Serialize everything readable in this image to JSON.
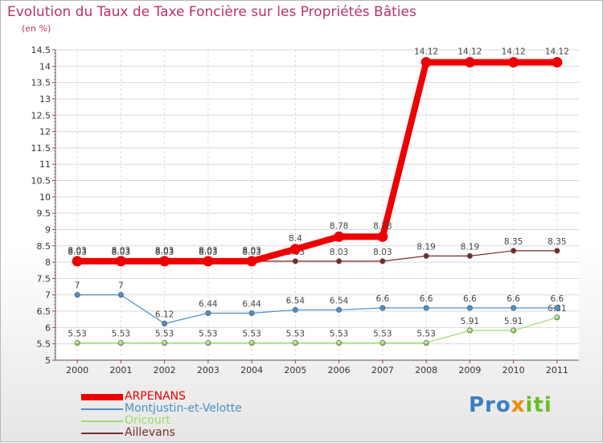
{
  "chart_data": {
    "type": "line",
    "title": "Evolution du Taux de Taxe Foncière sur les Propriétés Bâties",
    "ylabel": "(en %)",
    "xlabel": "",
    "ylim": [
      5,
      14.5
    ],
    "ytick_step": 0.5,
    "categories": [
      "2000",
      "2001",
      "2002",
      "2003",
      "2004",
      "2005",
      "2006",
      "2007",
      "2008",
      "2009",
      "2010",
      "2011"
    ],
    "series": [
      {
        "name": "ARPENANS",
        "color": "#ee0000",
        "values": [
          8.03,
          8.03,
          8.03,
          8.03,
          8.03,
          8.4,
          8.78,
          8.78,
          14.12,
          14.12,
          14.12,
          14.12
        ]
      },
      {
        "name": "Montjustin-et-Velotte",
        "color": "#4a90c8",
        "values": [
          7,
          7,
          6.12,
          6.44,
          6.44,
          6.54,
          6.54,
          6.6,
          6.6,
          6.6,
          6.6,
          6.6
        ]
      },
      {
        "name": "Oricourt",
        "color": "#99dd66",
        "values": [
          5.53,
          5.53,
          5.53,
          5.53,
          5.53,
          5.53,
          5.53,
          5.53,
          5.53,
          5.91,
          5.91,
          6.31
        ]
      },
      {
        "name": "Aillevans",
        "color": "#7a2a2a",
        "values": [
          8.03,
          8.03,
          8.03,
          8.03,
          8.03,
          8.03,
          8.03,
          8.03,
          8.19,
          8.19,
          8.35,
          8.35
        ]
      }
    ],
    "legend_position": "bottom-left",
    "grid": true
  },
  "brand": {
    "part1": "Pro",
    "part2": "x",
    "part3": "iti"
  }
}
